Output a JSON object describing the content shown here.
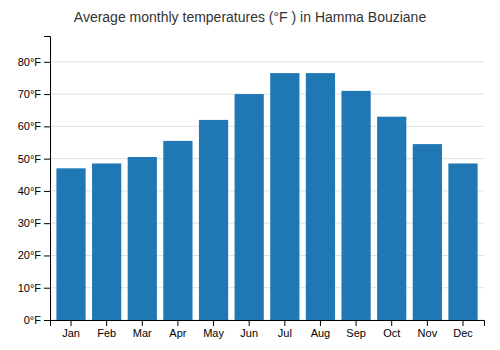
{
  "chart_data": {
    "type": "bar",
    "title": "Average monthly temperatures (°F ) in Hamma Bouziane",
    "categories": [
      "Jan",
      "Feb",
      "Mar",
      "Apr",
      "May",
      "Jun",
      "Jul",
      "Aug",
      "Sep",
      "Oct",
      "Nov",
      "Dec"
    ],
    "values": [
      47,
      48.5,
      50.5,
      55.5,
      62,
      70,
      76.5,
      76.5,
      71,
      63,
      54.5,
      48.5
    ],
    "ylim": [
      0,
      88
    ],
    "yticks": [
      {
        "value": 0,
        "label": "0°F"
      },
      {
        "value": 10,
        "label": "10°F"
      },
      {
        "value": 20,
        "label": "20°F"
      },
      {
        "value": 30,
        "label": "30°F"
      },
      {
        "value": 40,
        "label": "40°F"
      },
      {
        "value": 50,
        "label": "50°F"
      },
      {
        "value": 60,
        "label": "60°F"
      },
      {
        "value": 70,
        "label": "70°F"
      },
      {
        "value": 80,
        "label": "80°F"
      }
    ],
    "grid": true
  }
}
